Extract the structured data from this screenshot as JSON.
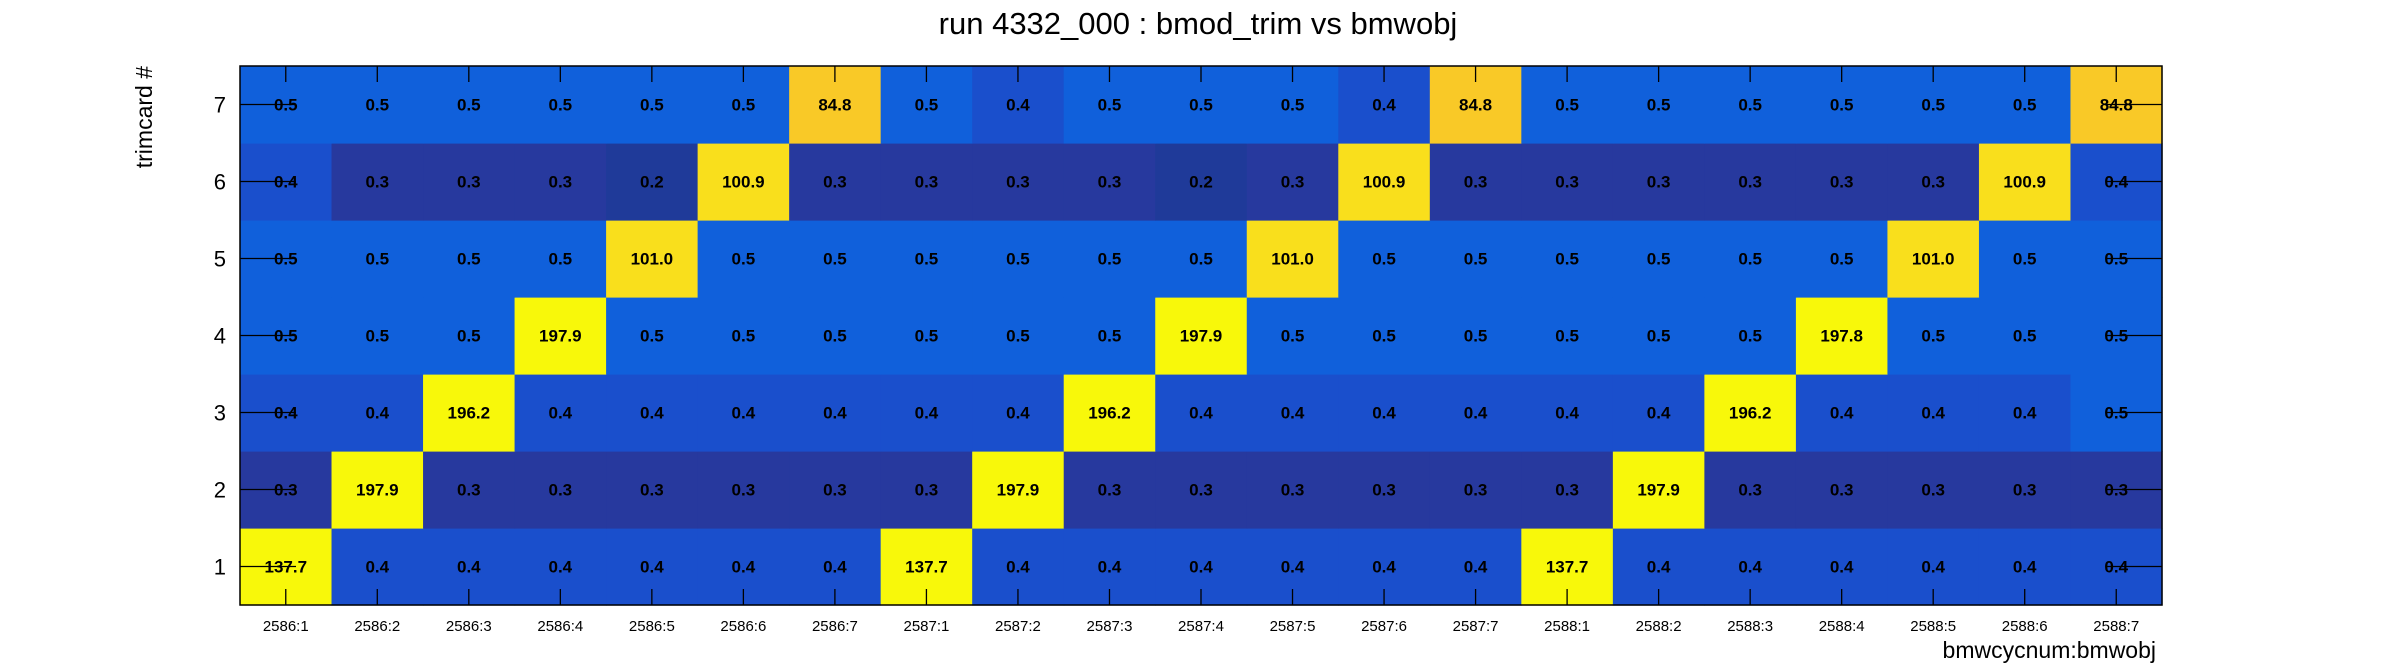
{
  "chart_data": {
    "type": "heatmap",
    "title": "run 4332_000 : bmod_trim vs bmwobj",
    "xlabel": "bmwcycnum:bmwobj",
    "ylabel": "trimcard #",
    "x_categories": [
      "2586:1",
      "2586:2",
      "2586:3",
      "2586:4",
      "2586:5",
      "2586:6",
      "2586:7",
      "2587:1",
      "2587:2",
      "2587:3",
      "2587:4",
      "2587:5",
      "2587:6",
      "2587:7",
      "2588:1",
      "2588:2",
      "2588:3",
      "2588:4",
      "2588:5",
      "2588:6",
      "2588:7"
    ],
    "y_categories": [
      "1",
      "2",
      "3",
      "4",
      "5",
      "6",
      "7"
    ],
    "values": [
      [
        "137.7",
        "0.4",
        "0.4",
        "0.4",
        "0.4",
        "0.4",
        "0.4",
        "137.7",
        "0.4",
        "0.4",
        "0.4",
        "0.4",
        "0.4",
        "0.4",
        "137.7",
        "0.4",
        "0.4",
        "0.4",
        "0.4",
        "0.4",
        "0.4"
      ],
      [
        "0.3",
        "197.9",
        "0.3",
        "0.3",
        "0.3",
        "0.3",
        "0.3",
        "0.3",
        "197.9",
        "0.3",
        "0.3",
        "0.3",
        "0.3",
        "0.3",
        "0.3",
        "197.9",
        "0.3",
        "0.3",
        "0.3",
        "0.3",
        "0.3"
      ],
      [
        "0.4",
        "0.4",
        "196.2",
        "0.4",
        "0.4",
        "0.4",
        "0.4",
        "0.4",
        "0.4",
        "196.2",
        "0.4",
        "0.4",
        "0.4",
        "0.4",
        "0.4",
        "0.4",
        "196.2",
        "0.4",
        "0.4",
        "0.4",
        "0.5"
      ],
      [
        "0.5",
        "0.5",
        "0.5",
        "197.9",
        "0.5",
        "0.5",
        "0.5",
        "0.5",
        "0.5",
        "0.5",
        "197.9",
        "0.5",
        "0.5",
        "0.5",
        "0.5",
        "0.5",
        "0.5",
        "197.8",
        "0.5",
        "0.5",
        "0.5"
      ],
      [
        "0.5",
        "0.5",
        "0.5",
        "0.5",
        "101.0",
        "0.5",
        "0.5",
        "0.5",
        "0.5",
        "0.5",
        "0.5",
        "101.0",
        "0.5",
        "0.5",
        "0.5",
        "0.5",
        "0.5",
        "0.5",
        "101.0",
        "0.5",
        "0.5"
      ],
      [
        "0.4",
        "0.3",
        "0.3",
        "0.3",
        "0.2",
        "100.9",
        "0.3",
        "0.3",
        "0.3",
        "0.3",
        "0.2",
        "0.3",
        "100.9",
        "0.3",
        "0.3",
        "0.3",
        "0.3",
        "0.3",
        "0.3",
        "100.9",
        "0.4"
      ],
      [
        "0.5",
        "0.5",
        "0.5",
        "0.5",
        "0.5",
        "0.5",
        "84.8",
        "0.5",
        "0.4",
        "0.5",
        "0.5",
        "0.5",
        "0.4",
        "84.8",
        "0.5",
        "0.5",
        "0.5",
        "0.5",
        "0.5",
        "0.5",
        "84.8"
      ]
    ],
    "colors": {
      "low_0.2": "#1f3a99",
      "low_0.3": "#27399e",
      "low_0.4": "#1a4fcc",
      "low_0.5": "#1060db",
      "mid_84.8": "#f9c927",
      "mid_100.9": "#f9df1c",
      "high": "#f8f80a"
    }
  }
}
